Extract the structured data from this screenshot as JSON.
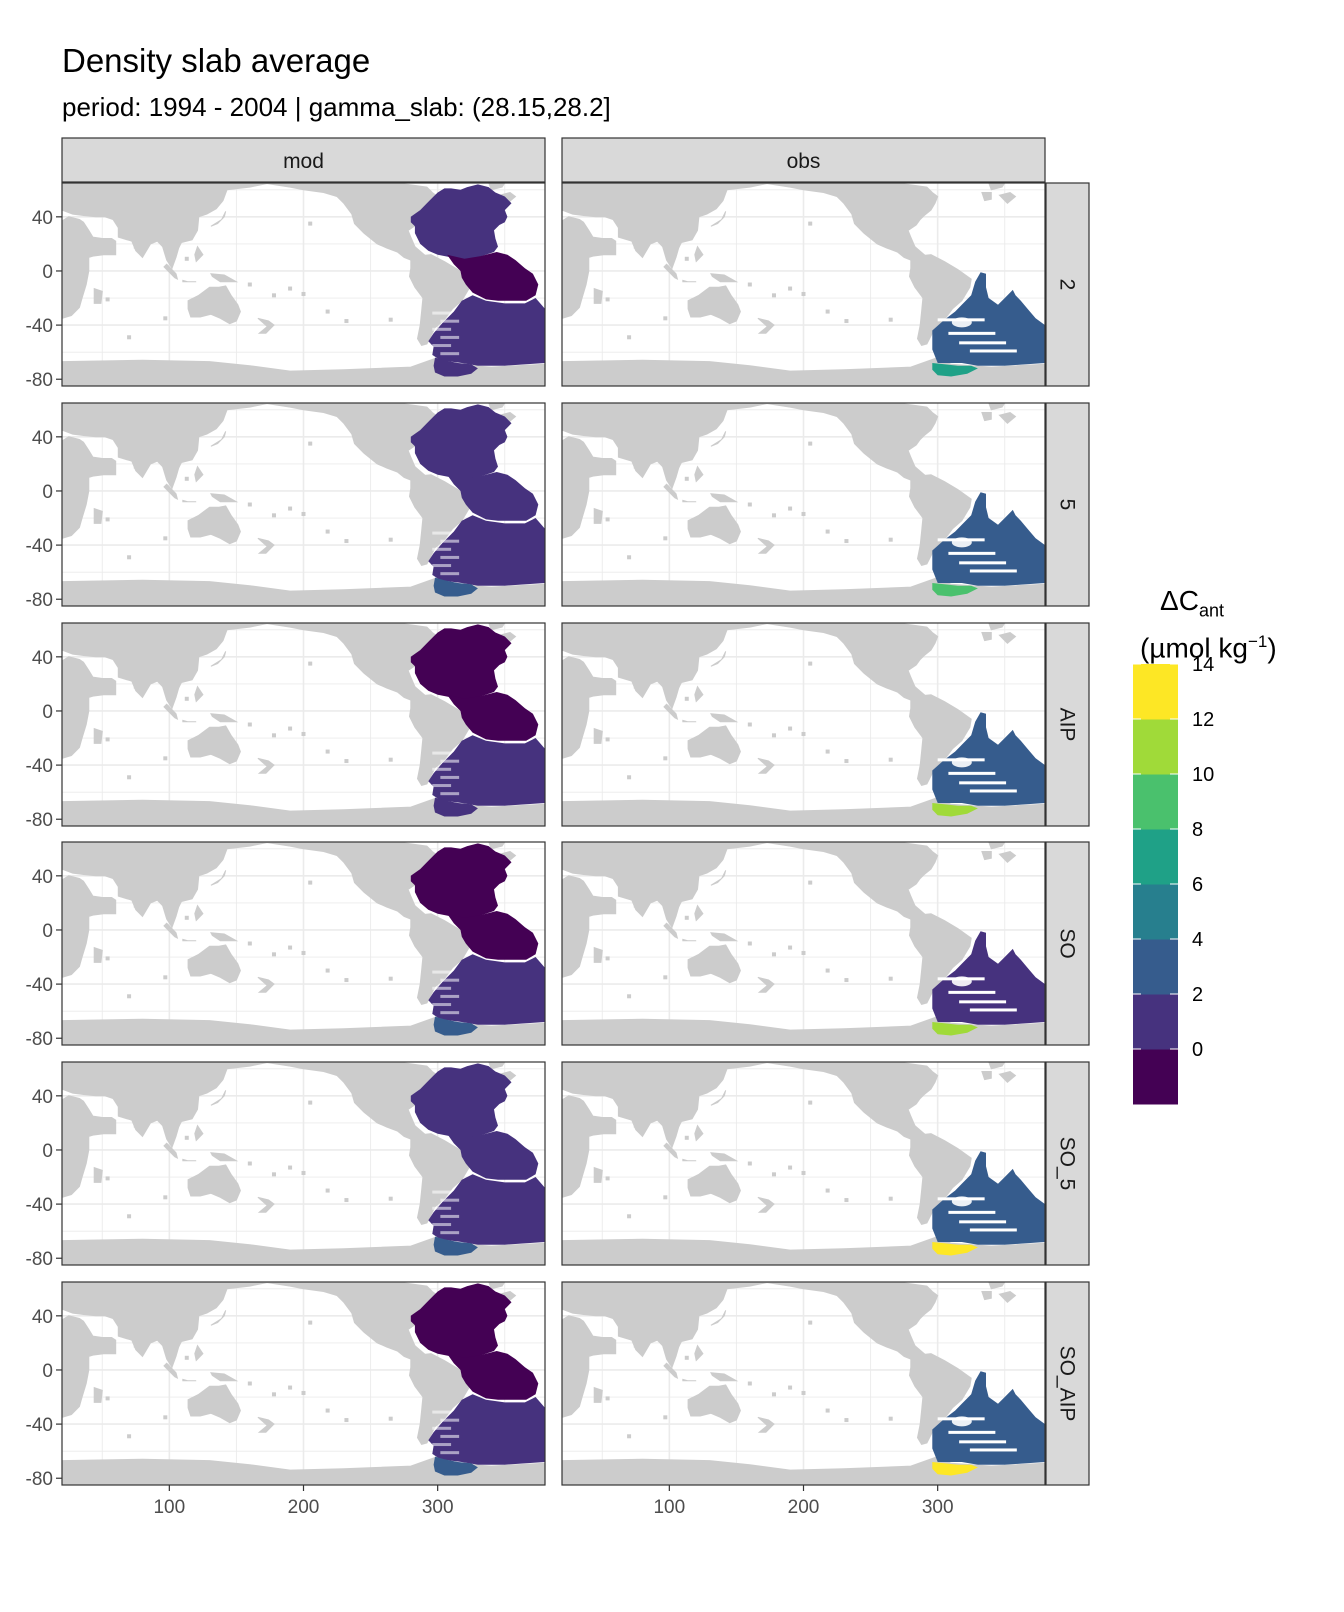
{
  "chart_data": {
    "type": "heatmap",
    "title": "Density slab average",
    "subtitle": "period: 1994 - 2004 | gamma_slab: (28.15,28.2]",
    "columns": [
      "mod",
      "obs"
    ],
    "rows": [
      "2",
      "5",
      "AIP",
      "SO",
      "SO_5",
      "SO_AIP"
    ],
    "xlim": [
      20,
      380
    ],
    "ylim": [
      -85,
      65
    ],
    "x_ticks": [
      100,
      200,
      300
    ],
    "y_ticks": [
      40,
      0,
      -40,
      -80
    ],
    "legend": {
      "title_main": "ΔC",
      "title_sub": "ant",
      "title_unit": "(µmol kg",
      "title_exp": "−1",
      "title_close": ")",
      "placement": "right",
      "breaks": [
        0,
        2,
        4,
        6,
        8,
        10,
        12,
        14
      ],
      "colors": [
        "#440154",
        "#46327E",
        "#365C8D",
        "#277F8E",
        "#1FA187",
        "#4AC16D",
        "#A0DA39",
        "#FDE725"
      ]
    },
    "panel_levels": {
      "mod": {
        "2": {
          "north": 1,
          "tropics": 0,
          "south": 1,
          "coast": 1
        },
        "5": {
          "north": 1,
          "tropics": 1,
          "south": 1,
          "coast": 2
        },
        "AIP": {
          "north": 0,
          "tropics": 0,
          "south": 1,
          "coast": 1
        },
        "SO": {
          "north": 0,
          "tropics": 0,
          "south": 1,
          "coast": 2
        },
        "SO_5": {
          "north": 1,
          "tropics": 1,
          "south": 1,
          "coast": 2
        },
        "SO_AIP": {
          "north": 0,
          "tropics": 0,
          "south": 1,
          "coast": 2
        }
      },
      "obs": {
        "2": {
          "basin": 2,
          "coast": 4
        },
        "5": {
          "basin": 2,
          "coast": 5
        },
        "AIP": {
          "basin": 2,
          "coast": 6
        },
        "SO": {
          "basin": 1,
          "coast": 6
        },
        "SO_5": {
          "basin": 2,
          "coast": 7
        },
        "SO_AIP": {
          "basin": 2,
          "coast": 7
        }
      }
    },
    "land_color": "#CCCCCC",
    "grid": true
  }
}
